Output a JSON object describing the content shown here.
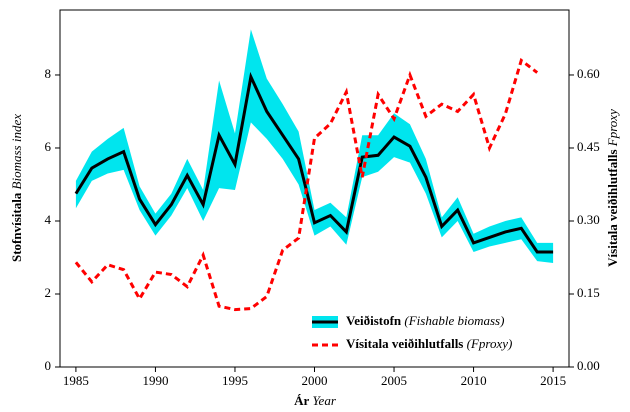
{
  "chart_data": {
    "type": "line",
    "x_label": "Ár",
    "x_label_en": "Year",
    "y_label": "Stofnvísitala",
    "y_label_en": "Biomass index",
    "y2_label": "Vísitala veiðihlutfalls",
    "y2_label_en": "Fproxy",
    "x": [
      1985,
      1986,
      1987,
      1988,
      1989,
      1990,
      1991,
      1992,
      1993,
      1994,
      1995,
      1996,
      1997,
      1998,
      1999,
      2000,
      2001,
      2002,
      2003,
      2004,
      2005,
      2006,
      2007,
      2008,
      2009,
      2010,
      2011,
      2012,
      2013,
      2014,
      2015
    ],
    "series": [
      {
        "name": "Veiðistofn",
        "name_en": "(Fishable biomass)",
        "color": "#000000",
        "band_color": "#00e5ee",
        "values": [
          4.75,
          5.45,
          5.7,
          5.9,
          4.6,
          3.9,
          4.45,
          5.25,
          4.45,
          6.35,
          5.55,
          7.95,
          7.0,
          6.35,
          5.7,
          3.95,
          4.15,
          3.7,
          5.75,
          5.8,
          6.3,
          6.05,
          5.2,
          3.85,
          4.3,
          3.4,
          3.55,
          3.7,
          3.8,
          3.15,
          3.15
        ],
        "upper": [
          5.1,
          5.9,
          6.25,
          6.55,
          4.95,
          4.2,
          4.75,
          5.7,
          4.85,
          7.85,
          6.4,
          9.25,
          7.9,
          7.2,
          6.45,
          4.3,
          4.5,
          4.1,
          6.35,
          6.35,
          6.95,
          6.65,
          5.7,
          4.1,
          4.65,
          3.65,
          3.85,
          4.0,
          4.1,
          3.4,
          3.4
        ],
        "lower": [
          4.35,
          5.1,
          5.3,
          5.4,
          4.3,
          3.6,
          4.15,
          4.9,
          4.0,
          4.9,
          4.85,
          6.7,
          6.25,
          5.7,
          5.0,
          3.6,
          3.85,
          3.35,
          5.2,
          5.35,
          5.75,
          5.6,
          4.75,
          3.55,
          4.0,
          3.15,
          3.3,
          3.4,
          3.5,
          2.9,
          2.85
        ]
      },
      {
        "name": "Vísitala veiðihlutfalls",
        "name_en": "(Fproxy)",
        "color": "#ff0000",
        "dashed": true,
        "axis": "y2",
        "values": [
          0.215,
          0.175,
          0.21,
          0.2,
          0.14,
          0.195,
          0.19,
          0.165,
          0.23,
          0.125,
          0.118,
          0.12,
          0.145,
          0.24,
          0.265,
          0.47,
          0.5,
          0.565,
          0.39,
          0.56,
          0.51,
          0.6,
          0.515,
          0.54,
          0.525,
          0.56,
          0.45,
          0.52,
          0.63,
          0.605,
          null
        ]
      }
    ],
    "xlim": [
      1984,
      2016
    ],
    "xticks": [
      1985,
      1990,
      1995,
      2000,
      2005,
      2010,
      2015
    ],
    "ylim": [
      0,
      9.78
    ],
    "yticks": [
      0,
      2,
      4,
      6,
      8
    ],
    "y2lim": [
      0,
      0.7335
    ],
    "y2ticks": [
      {
        "value": 0,
        "label": "0.00"
      },
      {
        "value": 0.15,
        "label": "0.15"
      },
      {
        "value": 0.3,
        "label": "0.30"
      },
      {
        "value": 0.45,
        "label": "0.45"
      },
      {
        "value": 0.6,
        "label": "0.60"
      }
    ],
    "legend": "lower right"
  }
}
